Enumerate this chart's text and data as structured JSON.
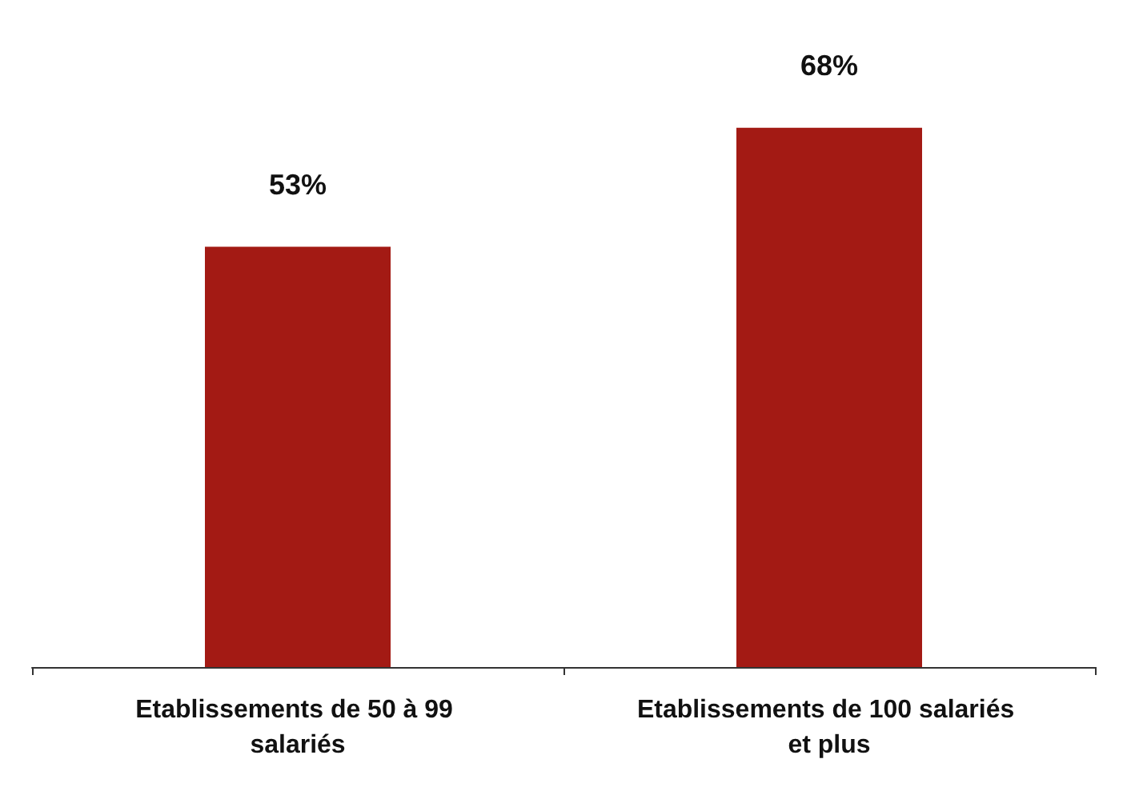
{
  "chart_data": {
    "type": "bar",
    "categories": [
      "Etablissements de 50 à 99 salariés",
      "Etablissements de 100 salariés et plus"
    ],
    "values": [
      53,
      68
    ],
    "value_labels": [
      "53%",
      "68%"
    ],
    "color": "#a31a14",
    "tick_labels": "x"
  }
}
